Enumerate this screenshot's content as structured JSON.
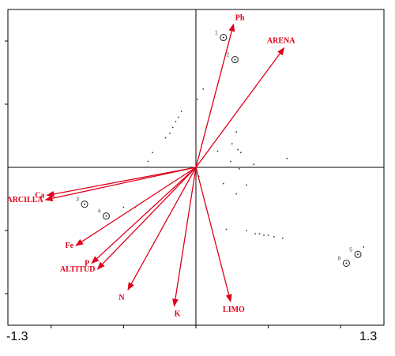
{
  "chart_data": {
    "type": "biplot",
    "title": "",
    "xlabel": "",
    "ylabel": "",
    "xlim": [
      -1.3,
      1.3
    ],
    "ylim": [
      -1.07,
      1.07
    ],
    "x_tick_labels": [
      "-1.3",
      "1.3"
    ],
    "grid": false,
    "arrow_color": "#e0001b",
    "vectors": [
      {
        "name": "Ph",
        "x": 0.26,
        "y": 0.97
      },
      {
        "name": "ARENA",
        "x": 0.61,
        "y": 0.81
      },
      {
        "name": "Ca",
        "x": -1.03,
        "y": -0.19
      },
      {
        "name": "ARCILLA",
        "x": -1.04,
        "y": -0.22
      },
      {
        "name": "Fe",
        "x": -0.83,
        "y": -0.53
      },
      {
        "name": "P",
        "x": -0.72,
        "y": -0.65
      },
      {
        "name": "ALTITUD",
        "x": -0.68,
        "y": -0.69
      },
      {
        "name": "N",
        "x": -0.47,
        "y": -0.83
      },
      {
        "name": "K",
        "x": -0.15,
        "y": -0.94
      },
      {
        "name": "LIMO",
        "x": 0.24,
        "y": -0.91
      }
    ],
    "sites": [
      {
        "label": "1",
        "x": 0.19,
        "y": 0.88
      },
      {
        "label": "2",
        "x": 0.27,
        "y": 0.73
      },
      {
        "label": "3",
        "x": -0.77,
        "y": -0.25
      },
      {
        "label": "4",
        "x": -0.62,
        "y": -0.33
      },
      {
        "label": "5",
        "x": 1.12,
        "y": -0.59
      },
      {
        "label": "6",
        "x": 1.04,
        "y": -0.65
      }
    ],
    "species_points": [
      [
        0.05,
        0.53
      ],
      [
        0.01,
        0.46
      ],
      [
        -0.1,
        0.38
      ],
      [
        -0.12,
        0.34
      ],
      [
        -0.14,
        0.31
      ],
      [
        -0.16,
        0.27
      ],
      [
        -0.18,
        0.23
      ],
      [
        -0.21,
        0.2
      ],
      [
        -0.3,
        0.1
      ],
      [
        -0.33,
        0.04
      ],
      [
        0.28,
        0.24
      ],
      [
        0.25,
        0.16
      ],
      [
        0.29,
        0.12
      ],
      [
        0.15,
        0.11
      ],
      [
        0.24,
        0.04
      ],
      [
        0.31,
        0.1
      ],
      [
        0.4,
        0.02
      ],
      [
        0.63,
        0.06
      ],
      [
        0.3,
        -0.01
      ],
      [
        0.35,
        -0.12
      ],
      [
        0.28,
        -0.18
      ],
      [
        0.02,
        -0.06
      ],
      [
        0.19,
        -0.11
      ],
      [
        -0.5,
        -0.27
      ],
      [
        -0.42,
        -0.27
      ],
      [
        0.21,
        -0.42
      ],
      [
        0.35,
        -0.43
      ],
      [
        0.41,
        -0.45
      ],
      [
        0.44,
        -0.45
      ],
      [
        0.47,
        -0.46
      ],
      [
        0.5,
        -0.46
      ],
      [
        0.54,
        -0.47
      ],
      [
        0.6,
        -0.48
      ],
      [
        1.16,
        -0.54
      ]
    ]
  }
}
